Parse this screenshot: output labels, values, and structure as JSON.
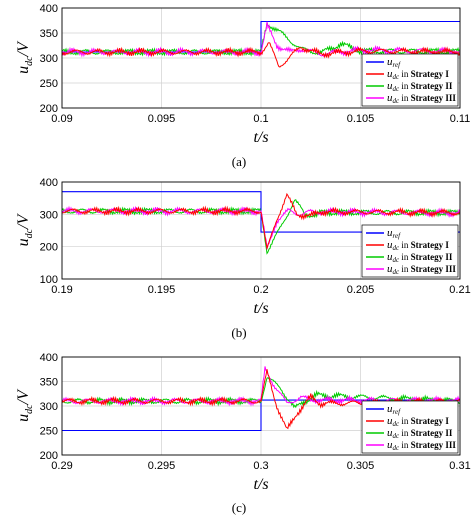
{
  "chart_data": [
    {
      "type": "line",
      "panel_label": "(a)",
      "xlabel": "t/s",
      "ylabel": "u_dc/V",
      "xlim": [
        0.09,
        0.11
      ],
      "ylim": [
        200,
        400
      ],
      "xticks": [
        "0.09",
        "0.095",
        "0.1",
        "0.105",
        "0.11"
      ],
      "yticks": [
        "200",
        "250",
        "300",
        "350",
        "400"
      ],
      "grid": true,
      "legend_position": "bottom-right",
      "step_time": 0.1,
      "series": [
        {
          "name": "u_ref",
          "color": "#0000ff",
          "x": [
            0.09,
            0.1,
            0.1,
            0.11
          ],
          "y": [
            312,
            312,
            373,
            373
          ]
        },
        {
          "name": "u_dc in Strategy I",
          "color": "#ff0000",
          "x": [
            0.09,
            0.1,
            0.1004,
            0.1009,
            0.1014,
            0.102,
            0.103,
            0.105,
            0.11
          ],
          "y": [
            312,
            312,
            330,
            283,
            300,
            322,
            308,
            314,
            312
          ]
        },
        {
          "name": "u_dc in Strategy II",
          "color": "#00cc00",
          "x": [
            0.09,
            0.1,
            0.1003,
            0.101,
            0.102,
            0.103,
            0.104,
            0.105,
            0.11
          ],
          "y": [
            312,
            312,
            370,
            350,
            318,
            310,
            328,
            314,
            313
          ]
        },
        {
          "name": "u_dc in Strategy III",
          "color": "#ff00ff",
          "x": [
            0.09,
            0.1,
            0.1003,
            0.1008,
            0.1015,
            0.102,
            0.103,
            0.105,
            0.11
          ],
          "y": [
            312,
            312,
            365,
            325,
            312,
            318,
            308,
            316,
            313
          ]
        }
      ]
    },
    {
      "type": "line",
      "panel_label": "(b)",
      "xlabel": "t/s",
      "ylabel": "u_dc/V",
      "xlim": [
        0.19,
        0.21
      ],
      "ylim": [
        100,
        400
      ],
      "xticks": [
        "0.19",
        "0.195",
        "0.2",
        "0.205",
        "0.21"
      ],
      "yticks": [
        "100",
        "200",
        "300",
        "400"
      ],
      "grid": true,
      "legend_position": "bottom-right",
      "step_time": 0.2,
      "series": [
        {
          "name": "u_ref",
          "color": "#0000ff",
          "x": [
            0.19,
            0.2,
            0.2,
            0.21
          ],
          "y": [
            370,
            370,
            245,
            245
          ]
        },
        {
          "name": "u_dc in Strategy I",
          "color": "#ff0000",
          "x": [
            0.19,
            0.2,
            0.2003,
            0.2008,
            0.2013,
            0.2018,
            0.2025,
            0.203,
            0.21
          ],
          "y": [
            310,
            310,
            190,
            285,
            360,
            300,
            295,
            308,
            305
          ]
        },
        {
          "name": "u_dc in Strategy II",
          "color": "#00cc00",
          "x": [
            0.19,
            0.2,
            0.2003,
            0.201,
            0.2017,
            0.2022,
            0.2028,
            0.203,
            0.21
          ],
          "y": [
            310,
            310,
            185,
            260,
            345,
            300,
            298,
            306,
            305
          ]
        },
        {
          "name": "u_dc in Strategy III",
          "color": "#ff00ff",
          "x": [
            0.19,
            0.2,
            0.2003,
            0.2008,
            0.2014,
            0.202,
            0.2025,
            0.21
          ],
          "y": [
            310,
            310,
            192,
            280,
            312,
            300,
            308,
            304
          ]
        }
      ]
    },
    {
      "type": "line",
      "panel_label": "(c)",
      "xlabel": "t/s",
      "ylabel": "u_dc/V",
      "xlim": [
        0.29,
        0.31
      ],
      "ylim": [
        200,
        400
      ],
      "xticks": [
        "0.29",
        "0.295",
        "0.3",
        "0.305",
        "0.31"
      ],
      "yticks": [
        "200",
        "250",
        "300",
        "350",
        "400"
      ],
      "grid": true,
      "legend_position": "bottom-right",
      "step_time": 0.3,
      "series": [
        {
          "name": "u_ref",
          "color": "#0000ff",
          "x": [
            0.29,
            0.3,
            0.3,
            0.31
          ],
          "y": [
            250,
            250,
            312,
            312
          ]
        },
        {
          "name": "u_dc in Strategy I",
          "color": "#ff0000",
          "x": [
            0.29,
            0.3,
            0.3003,
            0.3008,
            0.3013,
            0.3018,
            0.3025,
            0.303,
            0.31
          ],
          "y": [
            310,
            310,
            370,
            300,
            250,
            285,
            318,
            305,
            310
          ]
        },
        {
          "name": "u_dc in Strategy II",
          "color": "#00cc00",
          "x": [
            0.29,
            0.3,
            0.3003,
            0.301,
            0.3017,
            0.3022,
            0.3028,
            0.31
          ],
          "y": [
            310,
            310,
            360,
            335,
            295,
            310,
            322,
            310
          ]
        },
        {
          "name": "u_dc in Strategy III",
          "color": "#ff00ff",
          "x": [
            0.29,
            0.3,
            0.3002,
            0.3007,
            0.3013,
            0.302,
            0.3025,
            0.31
          ],
          "y": [
            310,
            310,
            376,
            340,
            305,
            318,
            312,
            311
          ]
        }
      ]
    }
  ]
}
